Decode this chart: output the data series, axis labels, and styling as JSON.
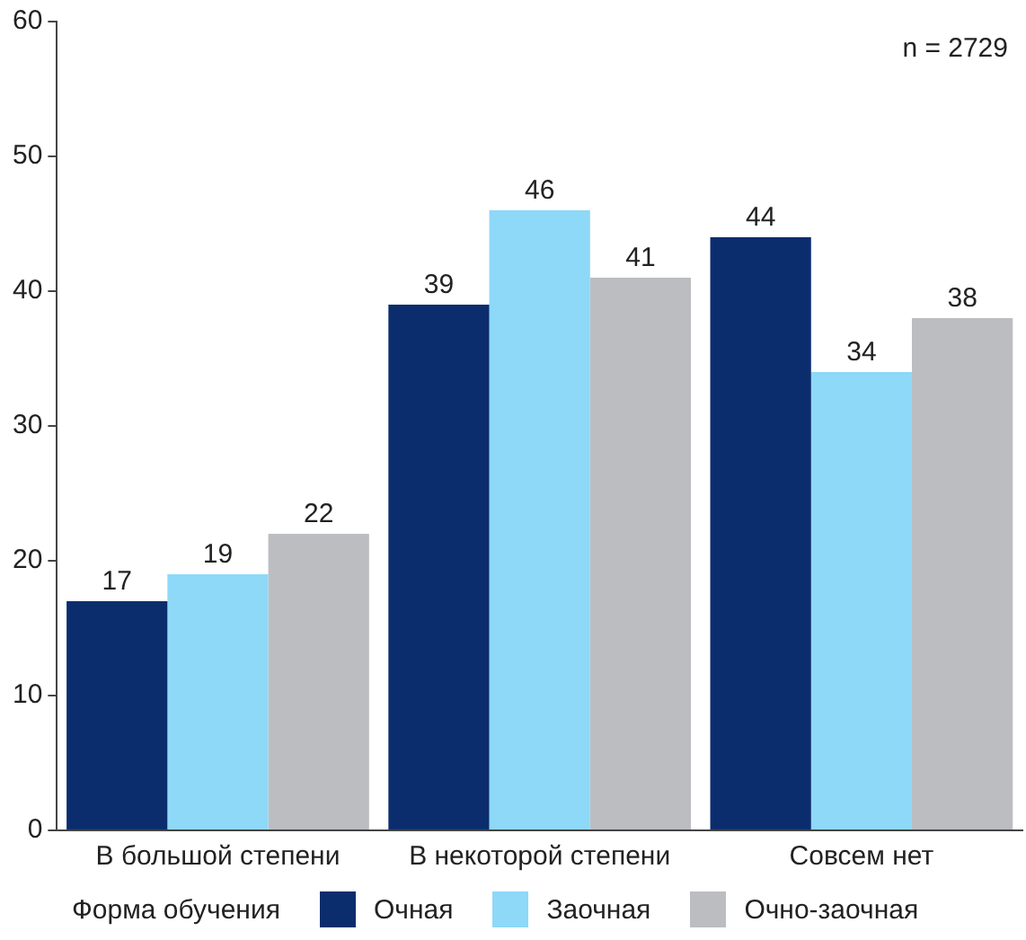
{
  "chart_data": {
    "type": "bar",
    "categories": [
      "В большой степени",
      "В некоторой степени",
      "Совсем нет"
    ],
    "series": [
      {
        "name": "Очная",
        "color": "#0b2d6e",
        "values": [
          17,
          39,
          44
        ]
      },
      {
        "name": "Заочная",
        "color": "#8ed8f8",
        "values": [
          19,
          46,
          34
        ]
      },
      {
        "name": "Очно-заочная",
        "color": "#bcbdc1",
        "values": [
          22,
          41,
          38
        ]
      }
    ],
    "ylim": [
      0,
      60
    ],
    "yticks": [
      0,
      10,
      20,
      30,
      40,
      50,
      60
    ],
    "grid": false,
    "legend": "bottom",
    "legend_title": "Форма обучения",
    "data_labels": true,
    "annotations": [
      "n = 2729"
    ]
  }
}
